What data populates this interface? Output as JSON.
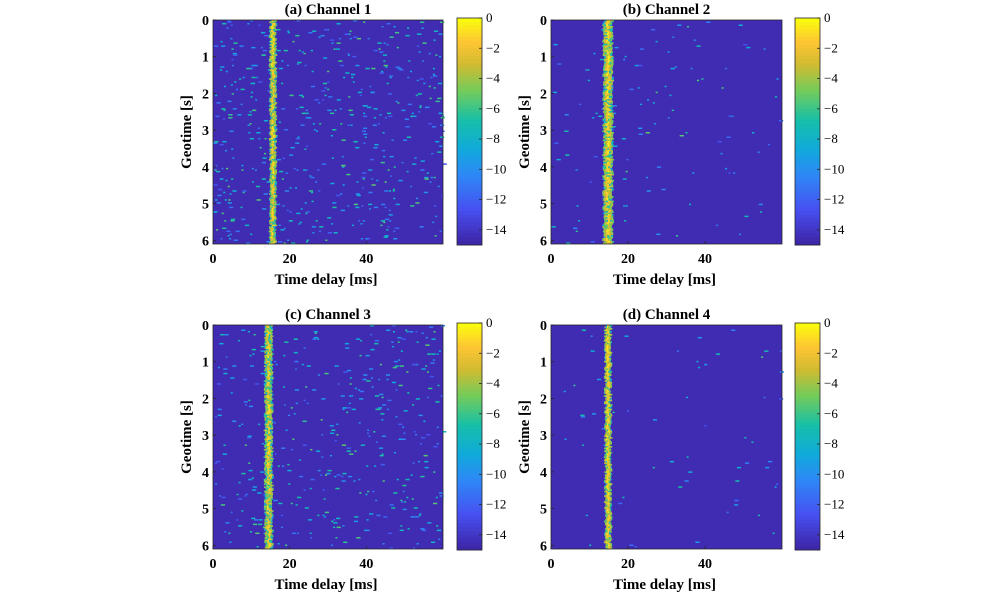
{
  "chart_data": [
    {
      "type": "heatmap",
      "title": "(a) Channel 1",
      "xlabel": "Time delay [ms]",
      "ylabel": "Geotime [s]",
      "xlim": [
        0,
        60
      ],
      "ylim": [
        0,
        6.1
      ],
      "xticks": [
        "0",
        "20",
        "40"
      ],
      "yticks": [
        "0",
        "1",
        "2",
        "3",
        "4",
        "5",
        "6"
      ],
      "colorbar": {
        "range": [
          -15,
          0
        ],
        "ticks": [
          "0",
          "−2",
          "−4",
          "−6",
          "−8",
          "−10",
          "−12",
          "−14"
        ]
      },
      "peak_delay_ms": 15.6,
      "peak_width_ms": 1.6,
      "noise_density": 0.55,
      "yellow_fraction": 0.7
    },
    {
      "type": "heatmap",
      "title": "(b) Channel 2",
      "xlabel": "Time delay [ms]",
      "ylabel": "Geotime [s]",
      "xlim": [
        0,
        60
      ],
      "ylim": [
        0,
        6.1
      ],
      "xticks": [
        "0",
        "20",
        "40"
      ],
      "yticks": [
        "0",
        "1",
        "2",
        "3",
        "4",
        "5",
        "6"
      ],
      "colorbar": {
        "range": [
          -15,
          0
        ],
        "ticks": [
          "0",
          "−2",
          "−4",
          "−6",
          "−8",
          "−10",
          "−12",
          "−14"
        ]
      },
      "peak_delay_ms": 14.8,
      "peak_width_ms": 2.4,
      "noise_density": 0.12,
      "yellow_fraction": 0.75
    },
    {
      "type": "heatmap",
      "title": "(c) Channel 3",
      "xlabel": "Time delay [ms]",
      "ylabel": "Geotime [s]",
      "xlim": [
        0,
        60
      ],
      "ylim": [
        0,
        6.1
      ],
      "xticks": [
        "0",
        "20",
        "40"
      ],
      "yticks": [
        "0",
        "1",
        "2",
        "3",
        "4",
        "5",
        "6"
      ],
      "colorbar": {
        "range": [
          -15,
          0
        ],
        "ticks": [
          "0",
          "−2",
          "−4",
          "−6",
          "−8",
          "−10",
          "−12",
          "−14"
        ]
      },
      "peak_delay_ms": 14.5,
      "peak_width_ms": 2.0,
      "noise_density": 0.4,
      "yellow_fraction": 0.6
    },
    {
      "type": "heatmap",
      "title": "(d) Channel 4",
      "xlabel": "Time delay [ms]",
      "ylabel": "Geotime [s]",
      "xlim": [
        0,
        60
      ],
      "ylim": [
        0,
        6.1
      ],
      "xticks": [
        "0",
        "20",
        "40"
      ],
      "yticks": [
        "0",
        "1",
        "2",
        "3",
        "4",
        "5",
        "6"
      ],
      "colorbar": {
        "range": [
          -15,
          0
        ],
        "ticks": [
          "0",
          "−2",
          "−4",
          "−6",
          "−8",
          "−10",
          "−12",
          "−14"
        ]
      },
      "peak_delay_ms": 14.8,
      "peak_width_ms": 1.6,
      "noise_density": 0.06,
      "yellow_fraction": 0.8
    }
  ]
}
